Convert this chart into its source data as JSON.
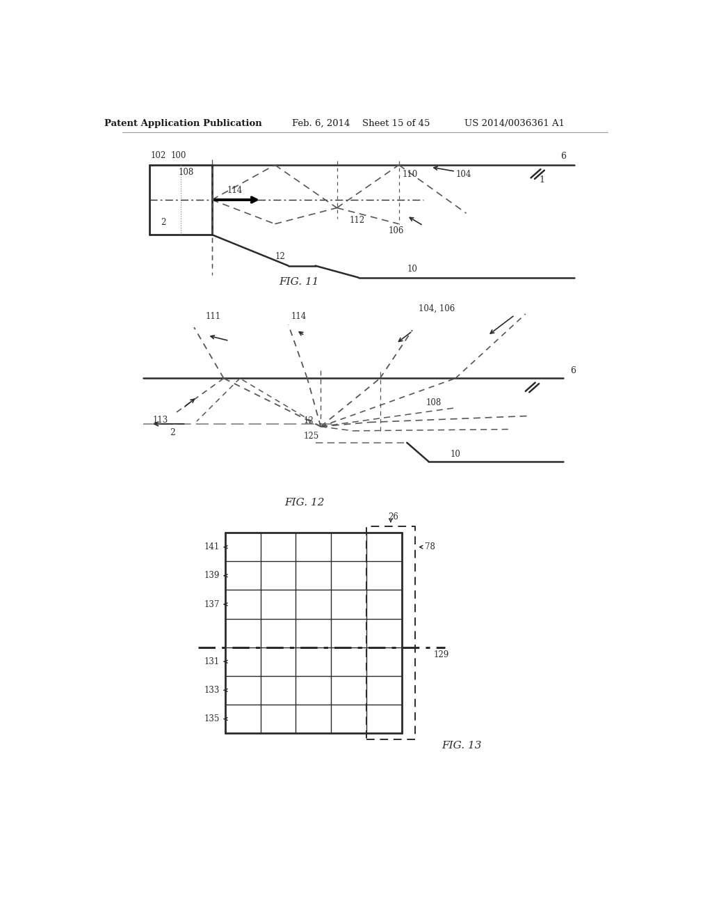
{
  "bg_color": "#ffffff",
  "line_color": "#2a2a2a",
  "dashed_color": "#555555",
  "text_color": "#2a2a2a",
  "header_text1": "Patent Application Publication",
  "header_text2": "Feb. 6, 2014",
  "header_text3": "Sheet 15 of 45",
  "header_text4": "US 2014/0036361 A1"
}
